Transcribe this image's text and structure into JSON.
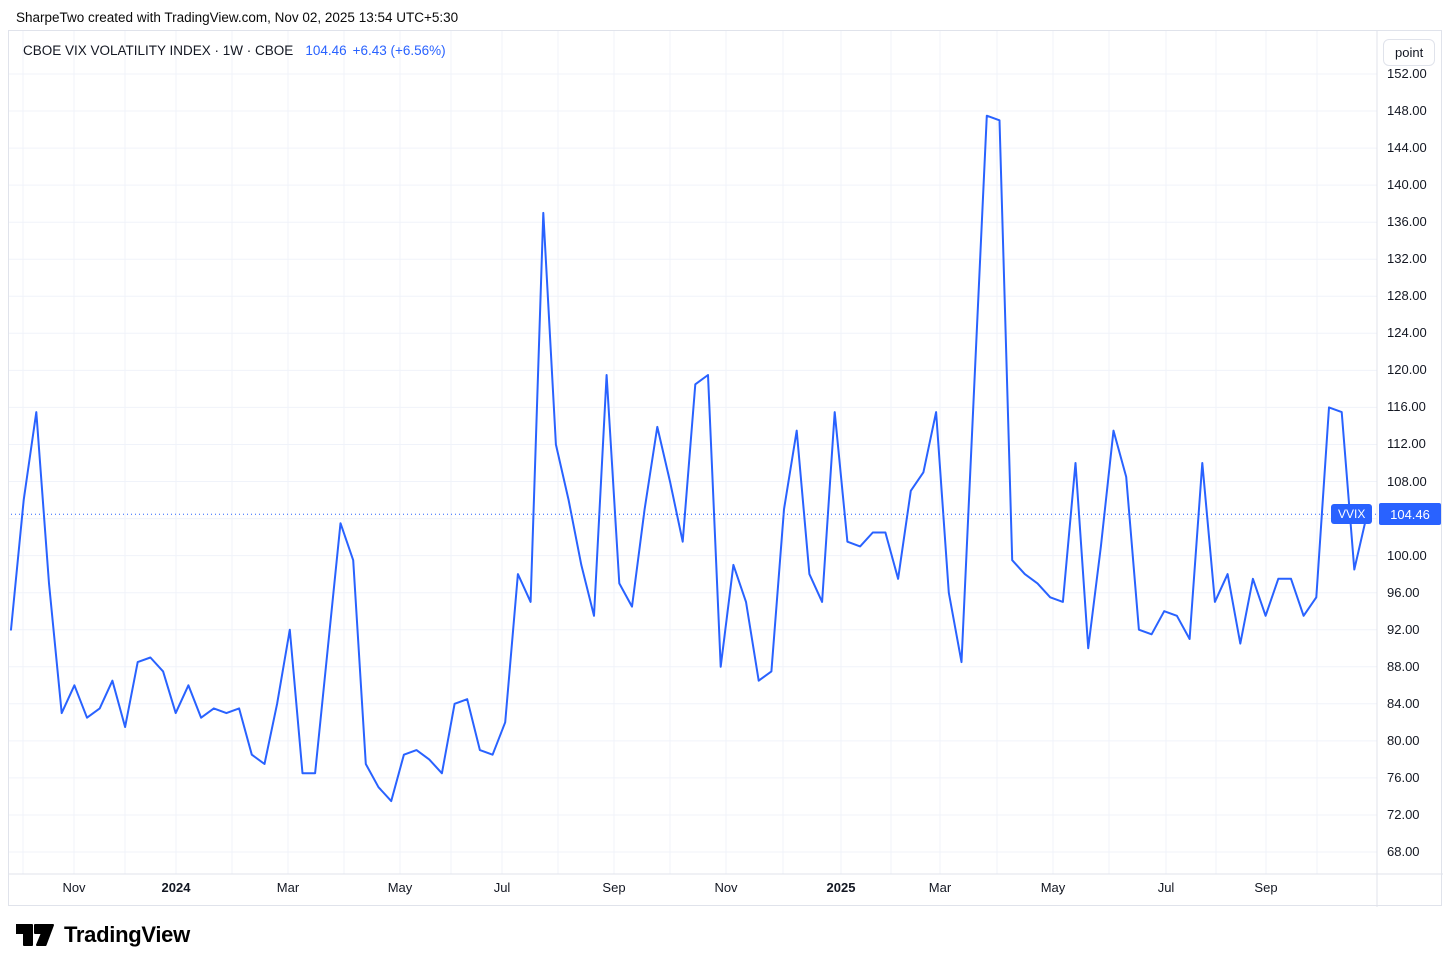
{
  "attribution": "SharpeTwo created with TradingView.com, Nov 02, 2025 13:54 UTC+5:30",
  "legend": {
    "title": "CBOE VIX VOLATILITY INDEX · 1W · CBOE",
    "price": "104.46",
    "change": "+6.43 (+6.56%)"
  },
  "price_scale": {
    "unit_label": "point"
  },
  "series_label": "VVIX",
  "current_price_label": "104.46",
  "footer": {
    "brand": "TradingView"
  },
  "colors": {
    "line": "#2962FF",
    "accent": "#2962FF",
    "grid": "#F0F3FA",
    "axis_text": "#131722",
    "border": "#E0E3EB",
    "background": "#FFFFFF"
  },
  "chart_data": {
    "type": "line",
    "title": "CBOE VIX VOLATILITY INDEX · 1W · CBOE",
    "series_name": "VVIX",
    "timeframe": "1W",
    "exchange": "CBOE",
    "unit": "point",
    "current_value": 104.46,
    "change": 6.43,
    "change_pct": 6.56,
    "ylim": [
      66,
      153
    ],
    "grid": true,
    "legend_position": "top-left",
    "y_ticks": [
      152,
      148,
      144,
      140,
      136,
      132,
      128,
      124,
      120,
      116,
      112,
      108,
      104,
      100,
      96,
      92,
      88,
      84,
      80,
      76,
      72,
      68
    ],
    "y_tick_labels": [
      "152.00",
      "148.00",
      "144.00",
      "140.00",
      "136.00",
      "132.00",
      "128.00",
      "124.00",
      "120.00",
      "116.00",
      "112.00",
      "108.00",
      "104.00",
      "100.00",
      "96.00",
      "92.00",
      "88.00",
      "84.00",
      "80.00",
      "76.00",
      "72.00",
      "68.00"
    ],
    "x_tick_labels": [
      "Nov",
      "2024",
      "Mar",
      "May",
      "Jul",
      "Sep",
      "Nov",
      "2025",
      "Mar",
      "May",
      "Jul",
      "Sep"
    ],
    "values": [
      92,
      106,
      115.5,
      97,
      83,
      86,
      82.5,
      83.5,
      86.5,
      81.5,
      88.5,
      89,
      87.5,
      83,
      86,
      82.5,
      83.5,
      83,
      83.5,
      78.5,
      77.5,
      84,
      92,
      76.5,
      76.5,
      90,
      103.5,
      99.5,
      77.5,
      75,
      73.5,
      78.5,
      79,
      78,
      76.5,
      84,
      84.5,
      79,
      78.5,
      82,
      98,
      95,
      137,
      112,
      106,
      99,
      93.5,
      119.5,
      97,
      94.5,
      105,
      113.9,
      108,
      101.5,
      118.5,
      119.5,
      88,
      99,
      95,
      86.5,
      87.5,
      105,
      113.5,
      98,
      95,
      115.5,
      101.5,
      101,
      102.5,
      102.5,
      97.5,
      107,
      109,
      115.5,
      96,
      88.5,
      118,
      147.5,
      147,
      99.5,
      98,
      97,
      95.5,
      95,
      110,
      90,
      101,
      113.5,
      108.5,
      92,
      91.5,
      94,
      93.5,
      91,
      110,
      95,
      98,
      90.5,
      97.5,
      93.5,
      97.5,
      97.5,
      93.5,
      95.5,
      116,
      115.5,
      98.5,
      104.46
    ]
  }
}
